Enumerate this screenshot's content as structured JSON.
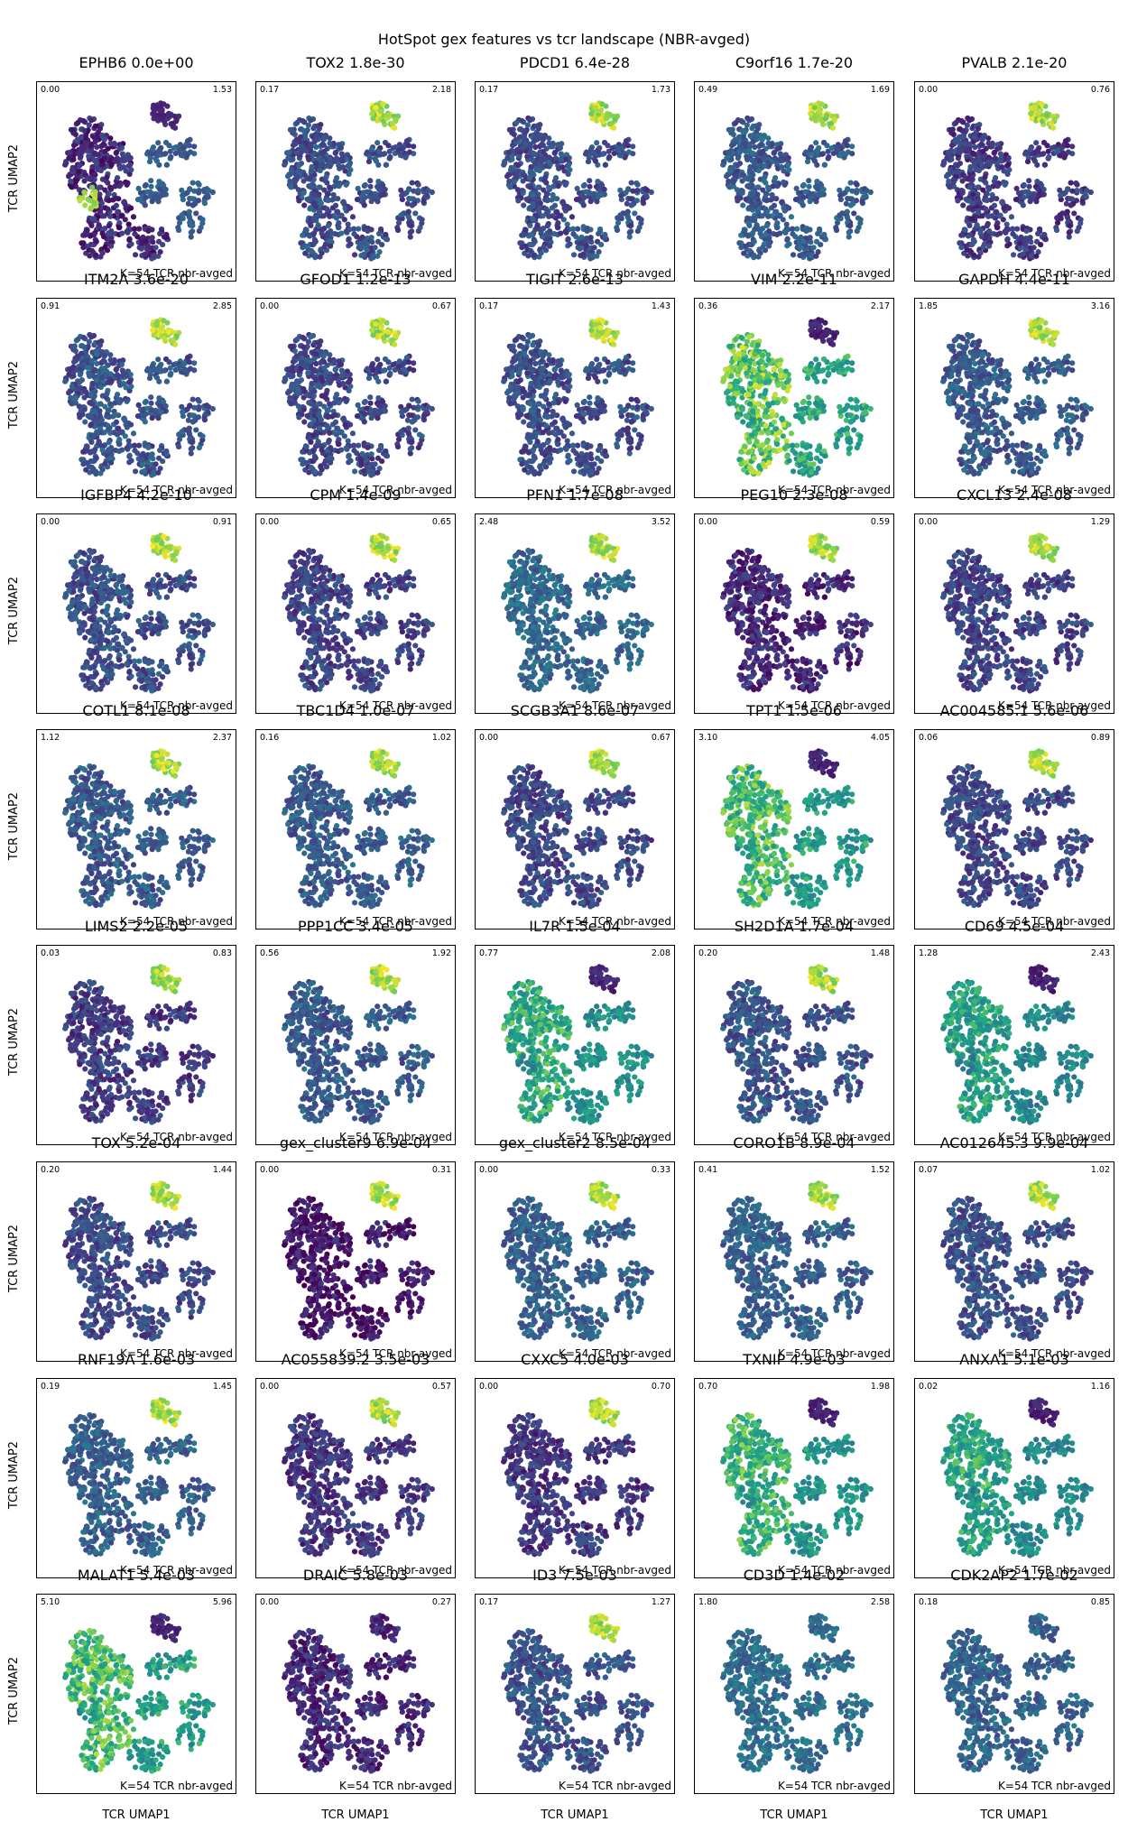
{
  "figure_title": "HotSpot gex features vs tcr landscape (NBR-avged)",
  "colormap": "viridis",
  "colors": {
    "low": "#440154",
    "mid": "#21918c",
    "high": "#fde725"
  },
  "chart_data": {
    "type": "scatter",
    "layout": "grid 8 rows x 5 columns",
    "xlabel": "TCR UMAP1",
    "ylabel": "TCR UMAP2",
    "panel_note": "K=54 TCR nbr-avged",
    "panels": [
      {
        "gene": "EPHB6",
        "pval": "0.0e+00",
        "vmin": "0.00",
        "vmax": "1.53",
        "hotspot": "left-cluster",
        "base": 0.15
      },
      {
        "gene": "TOX2",
        "pval": "1.8e-30",
        "vmin": "0.17",
        "vmax": "2.18",
        "hotspot": "top",
        "base": 0.3
      },
      {
        "gene": "PDCD1",
        "pval": "6.4e-28",
        "vmin": "0.17",
        "vmax": "1.73",
        "hotspot": "top",
        "base": 0.3
      },
      {
        "gene": "C9orf16",
        "pval": "1.7e-20",
        "vmin": "0.49",
        "vmax": "1.69",
        "hotspot": "top",
        "base": 0.35
      },
      {
        "gene": "PVALB",
        "pval": "2.1e-20",
        "vmin": "0.00",
        "vmax": "0.76",
        "hotspot": "top",
        "base": 0.22
      },
      {
        "gene": "ITM2A",
        "pval": "3.6e-20",
        "vmin": "0.91",
        "vmax": "2.85",
        "hotspot": "top",
        "base": 0.32
      },
      {
        "gene": "GFOD1",
        "pval": "1.2e-13",
        "vmin": "0.00",
        "vmax": "0.67",
        "hotspot": "top",
        "base": 0.27
      },
      {
        "gene": "TIGIT",
        "pval": "2.6e-13",
        "vmin": "0.17",
        "vmax": "1.43",
        "hotspot": "top",
        "base": 0.3
      },
      {
        "gene": "VIM",
        "pval": "2.2e-11",
        "vmin": "0.36",
        "vmax": "2.17",
        "hotspot": "inverse",
        "base": 0.72
      },
      {
        "gene": "GAPDH",
        "pval": "4.4e-11",
        "vmin": "1.85",
        "vmax": "3.16",
        "hotspot": "top",
        "base": 0.35
      },
      {
        "gene": "IGFBP4",
        "pval": "4.2e-10",
        "vmin": "0.00",
        "vmax": "0.91",
        "hotspot": "top",
        "base": 0.3
      },
      {
        "gene": "CPM",
        "pval": "1.4e-09",
        "vmin": "0.00",
        "vmax": "0.65",
        "hotspot": "top",
        "base": 0.25
      },
      {
        "gene": "PFN1",
        "pval": "1.7e-08",
        "vmin": "2.48",
        "vmax": "3.52",
        "hotspot": "top",
        "base": 0.42
      },
      {
        "gene": "PEG10",
        "pval": "2.3e-08",
        "vmin": "0.00",
        "vmax": "0.59",
        "hotspot": "top",
        "base": 0.15
      },
      {
        "gene": "CXCL13",
        "pval": "2.4e-08",
        "vmin": "0.00",
        "vmax": "1.29",
        "hotspot": "top",
        "base": 0.25
      },
      {
        "gene": "COTL1",
        "pval": "8.1e-08",
        "vmin": "1.12",
        "vmax": "2.37",
        "hotspot": "top",
        "base": 0.35
      },
      {
        "gene": "TBC1D4",
        "pval": "1.0e-07",
        "vmin": "0.16",
        "vmax": "1.02",
        "hotspot": "top",
        "base": 0.35
      },
      {
        "gene": "SCGB3A1",
        "pval": "8.6e-07",
        "vmin": "0.00",
        "vmax": "0.67",
        "hotspot": "top",
        "base": 0.27
      },
      {
        "gene": "TPT1",
        "pval": "1.5e-06",
        "vmin": "3.10",
        "vmax": "4.05",
        "hotspot": "inverse",
        "base": 0.68
      },
      {
        "gene": "AC004585.1",
        "pval": "5.6e-06",
        "vmin": "0.06",
        "vmax": "0.89",
        "hotspot": "top",
        "base": 0.27
      },
      {
        "gene": "LIMS2",
        "pval": "2.2e-05",
        "vmin": "0.03",
        "vmax": "0.83",
        "hotspot": "top",
        "base": 0.22
      },
      {
        "gene": "PPP1CC",
        "pval": "3.4e-05",
        "vmin": "0.56",
        "vmax": "1.92",
        "hotspot": "top",
        "base": 0.35
      },
      {
        "gene": "IL7R",
        "pval": "1.5e-04",
        "vmin": "0.77",
        "vmax": "2.08",
        "hotspot": "inverse",
        "base": 0.62
      },
      {
        "gene": "SH2D1A",
        "pval": "1.7e-04",
        "vmin": "0.20",
        "vmax": "1.48",
        "hotspot": "top",
        "base": 0.32
      },
      {
        "gene": "CD69",
        "pval": "4.5e-04",
        "vmin": "1.28",
        "vmax": "2.43",
        "hotspot": "inverse",
        "base": 0.58
      },
      {
        "gene": "TOX",
        "pval": "5.2e-04",
        "vmin": "0.20",
        "vmax": "1.44",
        "hotspot": "top",
        "base": 0.28
      },
      {
        "gene": "gex_cluster9",
        "pval": "6.9e-04",
        "vmin": "0.00",
        "vmax": "0.31",
        "hotspot": "top",
        "base": 0.08
      },
      {
        "gene": "gex_cluster2",
        "pval": "8.5e-04",
        "vmin": "0.00",
        "vmax": "0.33",
        "hotspot": "top",
        "base": 0.38
      },
      {
        "gene": "CORO1B",
        "pval": "8.9e-04",
        "vmin": "0.41",
        "vmax": "1.52",
        "hotspot": "top",
        "base": 0.38
      },
      {
        "gene": "AC012645.3",
        "pval": "9.9e-04",
        "vmin": "0.07",
        "vmax": "1.02",
        "hotspot": "top",
        "base": 0.3
      },
      {
        "gene": "RNF19A",
        "pval": "1.6e-03",
        "vmin": "0.19",
        "vmax": "1.45",
        "hotspot": "top",
        "base": 0.38
      },
      {
        "gene": "AC055839.2",
        "pval": "3.5e-03",
        "vmin": "0.00",
        "vmax": "0.57",
        "hotspot": "top",
        "base": 0.2
      },
      {
        "gene": "CXXC5",
        "pval": "4.0e-03",
        "vmin": "0.00",
        "vmax": "0.70",
        "hotspot": "top",
        "base": 0.2
      },
      {
        "gene": "TXNIP",
        "pval": "4.9e-03",
        "vmin": "0.70",
        "vmax": "1.98",
        "hotspot": "inverse",
        "base": 0.65
      },
      {
        "gene": "ANXA1",
        "pval": "5.1e-03",
        "vmin": "0.02",
        "vmax": "1.16",
        "hotspot": "inverse",
        "base": 0.6
      },
      {
        "gene": "MALAT1",
        "pval": "5.4e-03",
        "vmin": "5.10",
        "vmax": "5.96",
        "hotspot": "inverse",
        "base": 0.68
      },
      {
        "gene": "DRAIC",
        "pval": "5.8e-03",
        "vmin": "0.00",
        "vmax": "0.27",
        "hotspot": "none",
        "base": 0.15
      },
      {
        "gene": "ID3",
        "pval": "7.5e-03",
        "vmin": "0.17",
        "vmax": "1.27",
        "hotspot": "top",
        "base": 0.32
      },
      {
        "gene": "CD3D",
        "pval": "1.4e-02",
        "vmin": "1.80",
        "vmax": "2.58",
        "hotspot": "none",
        "base": 0.45
      },
      {
        "gene": "CDK2AP2",
        "pval": "1.7e-02",
        "vmin": "0.18",
        "vmax": "0.85",
        "hotspot": "none",
        "base": 0.4
      }
    ]
  }
}
